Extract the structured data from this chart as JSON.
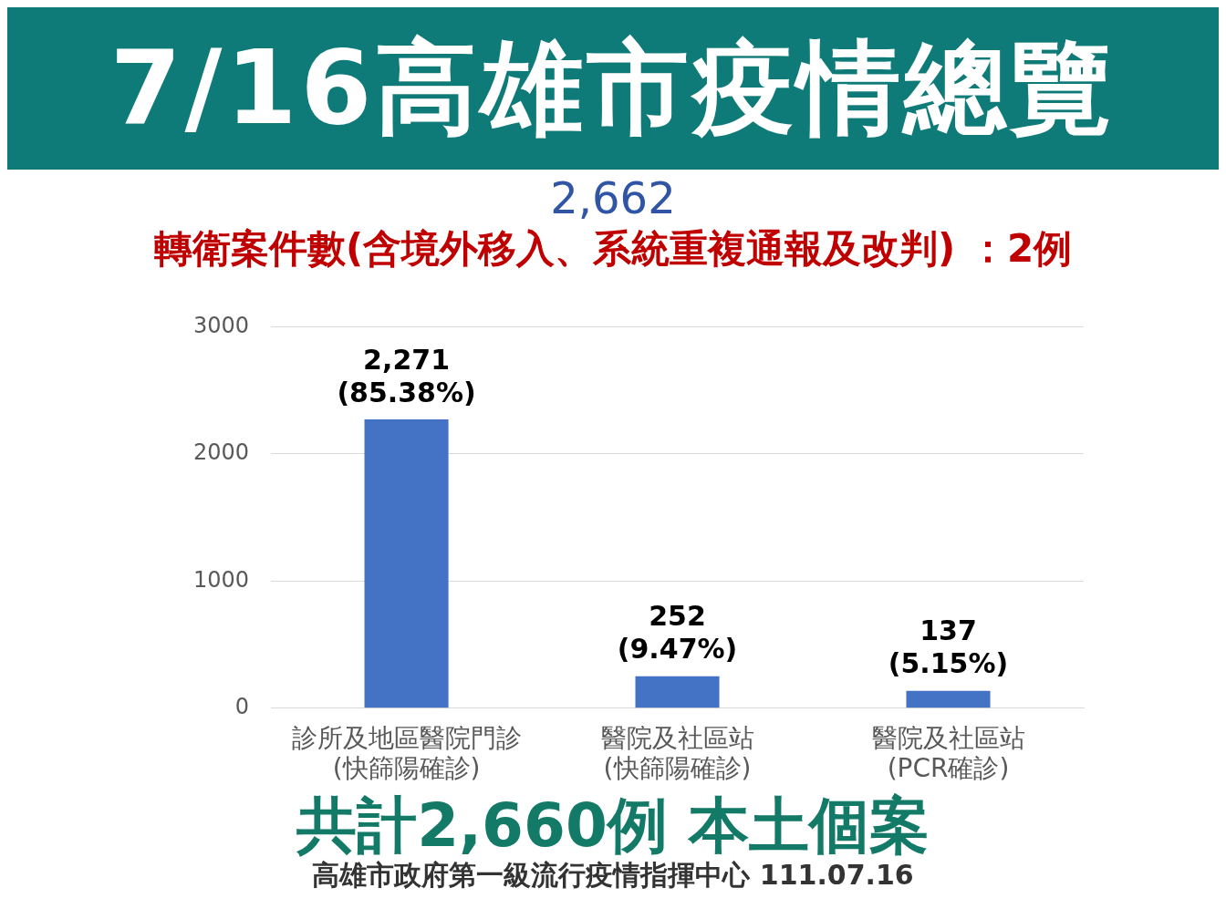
{
  "chart_data": {
    "type": "bar",
    "title": "7/16高雄市疫情總覽",
    "subtitle": "轉衛案件數(含境外移入、系統重複通報及改判) ：2例",
    "categories": [
      "診所及地區醫院門診 (快篩陽確診)",
      "醫院及社區站 (快篩陽確診)",
      "醫院及社區站 (PCR確診)"
    ],
    "values": [
      2271,
      252,
      137
    ],
    "color": "#4472c4",
    "value_labels": [
      "2,271 (85.38%)",
      "252 (9.47%)",
      "137 (5.15%)"
    ],
    "ylim": [
      0,
      3000
    ],
    "yticks": [
      0,
      1000,
      2000,
      3000
    ],
    "grid": "y",
    "annotations": [
      "2,662",
      "共計2,660例 本土個案",
      "高雄市政府第一級流行疫情指揮中心 111.07.16"
    ]
  }
}
